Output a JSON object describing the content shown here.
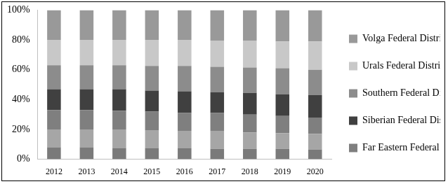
{
  "chart_data": {
    "type": "bar",
    "stacked": true,
    "grid": false,
    "legend": "right",
    "categories": [
      "2012",
      "2013",
      "2014",
      "2015",
      "2016",
      "2017",
      "2018",
      "2019",
      "2020"
    ],
    "ylim": [
      0,
      100
    ],
    "yticks": [
      {
        "value": 0,
        "label": "0%"
      },
      {
        "value": 20,
        "label": "20%"
      },
      {
        "value": 40,
        "label": "40%"
      },
      {
        "value": 60,
        "label": "60%"
      },
      {
        "value": 80,
        "label": "80%"
      },
      {
        "value": 100,
        "label": "100%"
      }
    ],
    "series": [
      {
        "name": null,
        "color": "#7a7a7a",
        "values": [
          8,
          8,
          7.5,
          7.5,
          7.5,
          7,
          7,
          7,
          6.5
        ]
      },
      {
        "name": null,
        "color": "#a6a6a6",
        "values": [
          12,
          12,
          12.5,
          12,
          11.5,
          12,
          11,
          10.5,
          10.5
        ]
      },
      {
        "name": "Far Eastern Federal District",
        "color": "#7f7f7f",
        "values": [
          13,
          13,
          12.5,
          12.5,
          12,
          12,
          12,
          11.5,
          11
        ]
      },
      {
        "name": "Siberian Federal District",
        "color": "#404040",
        "values": [
          14,
          14,
          14.5,
          14,
          14.5,
          14,
          14.5,
          14.5,
          15
        ]
      },
      {
        "name": "Southern Federal District",
        "color": "#8c8c8c",
        "values": [
          16,
          16,
          16,
          16.5,
          17,
          17,
          17,
          17.5,
          17
        ]
      },
      {
        "name": "Urals Federal District",
        "color": "#c8c8c8",
        "values": [
          17,
          17,
          17,
          17.5,
          17.5,
          17.5,
          18,
          18,
          19
        ]
      },
      {
        "name": "Volga Federal District",
        "color": "#999999",
        "values": [
          20,
          20,
          20,
          20,
          20,
          20.5,
          20.5,
          21,
          21
        ]
      }
    ]
  }
}
